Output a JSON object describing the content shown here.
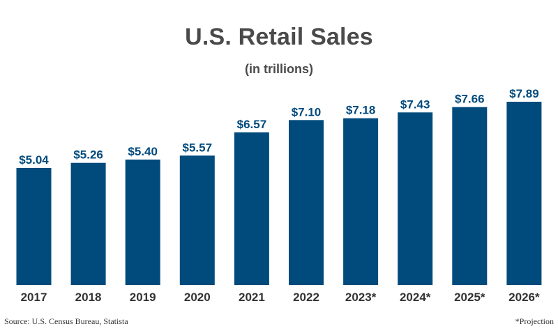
{
  "chart_data": {
    "type": "bar",
    "title": "U.S. Retail Sales",
    "subtitle": "(in trillions)",
    "categories": [
      "2017",
      "2018",
      "2019",
      "2020",
      "2021",
      "2022",
      "2023*",
      "2024*",
      "2025*",
      "2026*"
    ],
    "values": [
      5.04,
      5.26,
      5.4,
      5.57,
      6.57,
      7.1,
      7.18,
      7.43,
      7.66,
      7.89
    ],
    "data_labels": [
      "$5.04",
      "$5.26",
      "$5.40",
      "$5.57",
      "$6.57",
      "$7.10",
      "$7.18",
      "$7.43",
      "$7.66",
      "$7.89"
    ],
    "ylim": [
      0,
      7.89
    ],
    "grid": false,
    "bar_color": "#004a7c",
    "label_color": "#004a7c",
    "title_color": "#4a4a4a"
  },
  "footer": {
    "source": "Source: U.S. Census Bureau, Statista",
    "note": "*Projection"
  }
}
